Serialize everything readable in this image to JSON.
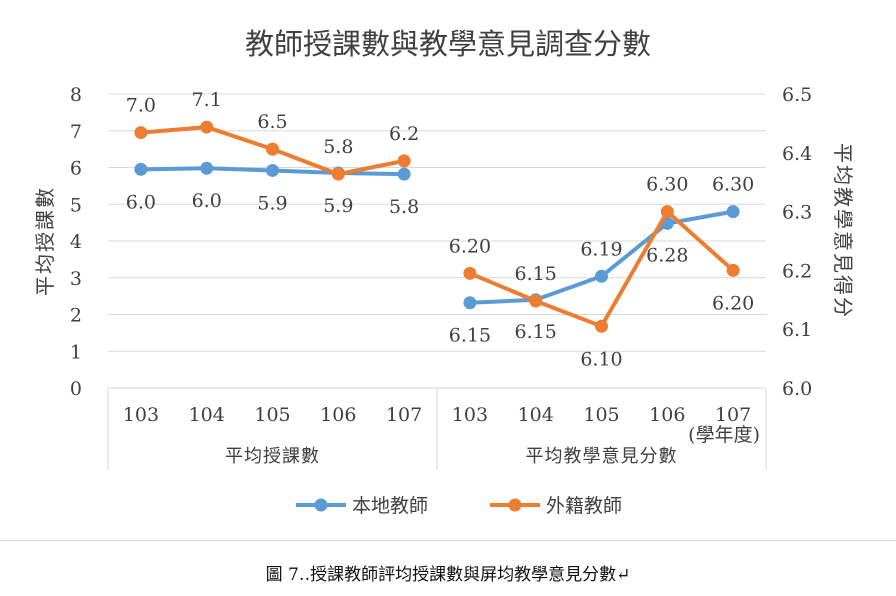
{
  "chart_data": {
    "type": "line",
    "title": "教師授課數與教學意見調查分數",
    "left_axis": {
      "label": "平均授課數",
      "min": 0,
      "max": 8,
      "ticks": [
        "0",
        "1",
        "2",
        "3",
        "4",
        "5",
        "6",
        "7",
        "8"
      ]
    },
    "right_axis": {
      "label": "平均教學意見得分",
      "min": 6.0,
      "max": 6.5,
      "ticks": [
        "6.0",
        "6.1",
        "6.2",
        "6.3",
        "6.4",
        "6.5"
      ]
    },
    "x_unit": "(學年度)",
    "groups": [
      {
        "name": "平均授課數",
        "axis": "left",
        "categories": [
          "103",
          "104",
          "105",
          "106",
          "107"
        ],
        "series": [
          {
            "name": "本地教師",
            "values": [
              5.95,
              5.98,
              5.92,
              5.85,
              5.82
            ],
            "labels": [
              "6.0",
              "6.0",
              "5.9",
              "5.9",
              "5.8"
            ]
          },
          {
            "name": "外籍教師",
            "values": [
              6.95,
              7.1,
              6.5,
              5.82,
              6.18
            ],
            "labels": [
              "7.0",
              "7.1",
              "6.5",
              "5.8",
              "6.2"
            ]
          }
        ]
      },
      {
        "name": "平均教學意見分數",
        "axis": "right",
        "categories": [
          "103",
          "104",
          "105",
          "106",
          "107"
        ],
        "series": [
          {
            "name": "本地教師",
            "values": [
              6.145,
              6.15,
              6.19,
              6.28,
              6.3
            ],
            "labels": [
              "6.15",
              "6.15",
              "6.19",
              "6.28",
              "6.30"
            ]
          },
          {
            "name": "外籍教師",
            "values": [
              6.195,
              6.148,
              6.105,
              6.3,
              6.2
            ],
            "labels": [
              "6.20",
              "6.15",
              "6.10",
              "6.30",
              "6.20"
            ]
          }
        ]
      }
    ],
    "legend": {
      "placement": "bottom",
      "entries": [
        "本地教師",
        "外籍教師"
      ]
    },
    "grid": true
  },
  "colors": {
    "series1": "#5b9bd5",
    "series2": "#ed7d31",
    "grid": "#d9d9d9",
    "text": "#404040"
  },
  "caption": "圖 7‥授課教師評均授課數與屏均教學意見分數↵"
}
